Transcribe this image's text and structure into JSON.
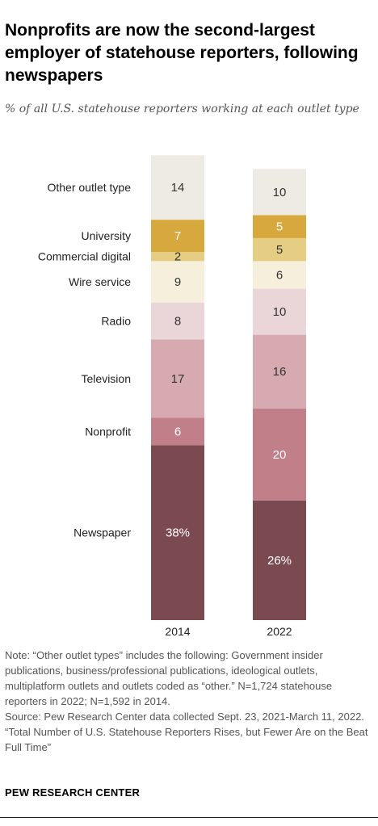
{
  "title": "Nonprofits are now the second-largest employer of statehouse reporters, following newspapers",
  "subtitle": "% of all U.S. statehouse reporters working at each outlet type",
  "chart_data": {
    "type": "bar",
    "stacked": true,
    "categories": [
      "2014",
      "2022"
    ],
    "series": [
      {
        "name": "Newspaper",
        "values": [
          38,
          26
        ],
        "labels": [
          "38%",
          "26%"
        ],
        "color": "#7b4a51",
        "text_color": "#ffffff"
      },
      {
        "name": "Nonprofit",
        "values": [
          6,
          20
        ],
        "labels": [
          "6",
          "20"
        ],
        "color": "#c17f8a",
        "text_color": "#ffffff"
      },
      {
        "name": "Television",
        "values": [
          17,
          16
        ],
        "labels": [
          "17",
          "16"
        ],
        "color": "#d7aab1",
        "text_color": "#333333"
      },
      {
        "name": "Radio",
        "values": [
          8,
          10
        ],
        "labels": [
          "8",
          "10"
        ],
        "color": "#ead5d8",
        "text_color": "#333333"
      },
      {
        "name": "Wire service",
        "values": [
          9,
          6
        ],
        "labels": [
          "9",
          "6"
        ],
        "color": "#f6efdc",
        "text_color": "#333333"
      },
      {
        "name": "Commercial digital",
        "values": [
          2,
          5
        ],
        "labels": [
          "2",
          "5"
        ],
        "color": "#e5cd83",
        "text_color": "#333333"
      },
      {
        "name": "University",
        "values": [
          7,
          5
        ],
        "labels": [
          "7",
          "5"
        ],
        "color": "#d7a83d",
        "text_color": "#ffffff"
      },
      {
        "name": "Other outlet type",
        "values": [
          14,
          10
        ],
        "labels": [
          "14",
          "10"
        ],
        "color": "#eeebe5",
        "text_color": "#333333"
      }
    ],
    "ylim": [
      0,
      100
    ],
    "grid": false,
    "legend": "left labels aligned to 2014 bar"
  },
  "notes": {
    "note": "Note: “Other outlet types” includes the following: Government insider publications, business/professional publications, ideological outlets, multiplatform outlets and outlets coded as “other.” N=1,724 statehouse reporters in 2022; N=1,592 in 2014.",
    "source": "Source: Pew Research Center data collected Sept. 23, 2021-March 11, 2022.",
    "report": "“Total Number of U.S. Statehouse Reporters Rises, but Fewer Are on the Beat Full Time”"
  },
  "brand": "PEW RESEARCH CENTER"
}
